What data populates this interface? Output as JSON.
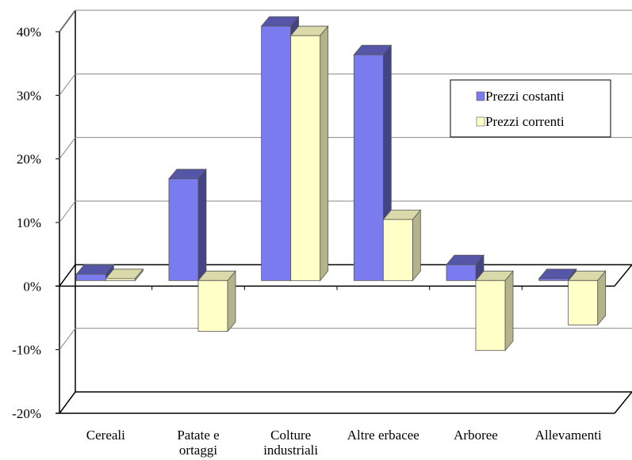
{
  "chart_data": {
    "type": "bar3d",
    "categories": [
      "Cereali",
      "Patate e\nortaggi",
      "Colture\nindustriali",
      "Altre erbacee",
      "Arboree",
      "Allevamenti"
    ],
    "series": [
      {
        "name": "Prezzi costanti",
        "color": "#7b7bf0",
        "values": [
          1,
          16,
          40,
          35.5,
          2.5,
          0.3
        ]
      },
      {
        "name": "Prezzi correnti",
        "color": "#ffffc8",
        "values": [
          0.3,
          -8,
          38.5,
          9.6,
          -11,
          -7
        ]
      }
    ],
    "ylim": [
      -20,
      40
    ],
    "yticks": [
      {
        "value": -20,
        "label": "-20%"
      },
      {
        "value": -10,
        "label": "-10%"
      },
      {
        "value": 0,
        "label": "0%"
      },
      {
        "value": 10,
        "label": "10%"
      },
      {
        "value": 20,
        "label": "20%"
      },
      {
        "value": 30,
        "label": "30%"
      },
      {
        "value": 40,
        "label": "40%"
      }
    ],
    "grid": true,
    "legend": "upper right"
  }
}
